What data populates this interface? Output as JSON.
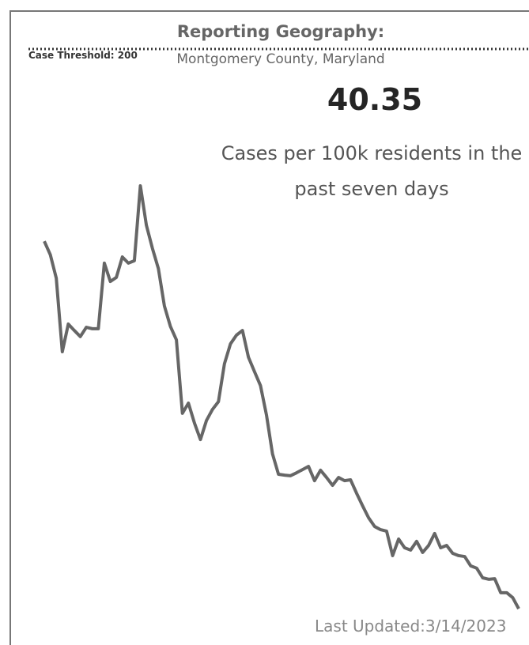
{
  "chart_data": {
    "type": "line",
    "title": "Reporting Geography:",
    "subtitle": "Montgomery County, Maryland",
    "kpi": "40.35",
    "kpi_label": "Cases per 100k residents in the past seven days",
    "threshold_label": "Case Threshold:",
    "threshold": 200,
    "footer": "Last Updated:3/14/2023",
    "color": "#666666",
    "ylim": [
      0,
      200
    ],
    "values": [
      134.1,
      129.5,
      121.4,
      96.2,
      105.7,
      103.5,
      101.4,
      104.6,
      104.1,
      104.1,
      126.6,
      120.3,
      121.7,
      128.7,
      126.6,
      127.4,
      153.1,
      139.6,
      131.7,
      124.7,
      111.9,
      104.9,
      100.3,
      75.1,
      78.6,
      71.8,
      66.1,
      72.6,
      76.4,
      79.1,
      92.1,
      98.9,
      101.9,
      103.5,
      94.3,
      89.4,
      84.6,
      74.5,
      61.2,
      54.2,
      53.9,
      53.7,
      54.7,
      55.8,
      56.9,
      52.0,
      55.6,
      53.1,
      50.4,
      53.1,
      52.0,
      52.3,
      47.7,
      43.4,
      39.3,
      36.3,
      35.2,
      34.7,
      26.3,
      32.0,
      29.0,
      28.2,
      31.2,
      27.4,
      29.8,
      33.9,
      29.0,
      29.8,
      27.1,
      26.3,
      26.0,
      22.8,
      22.0,
      18.7,
      18.2,
      18.4,
      13.6,
      13.6,
      11.9,
      8.1
    ]
  }
}
